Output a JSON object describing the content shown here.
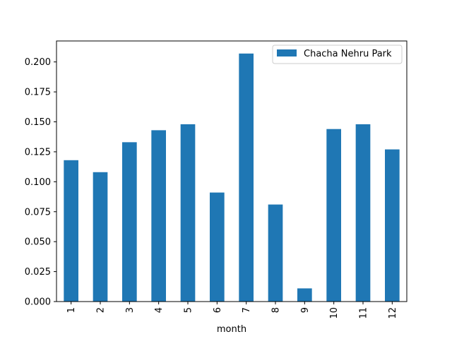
{
  "chart_data": {
    "type": "bar",
    "title": "",
    "xlabel": "month",
    "ylabel": "",
    "categories": [
      "1",
      "2",
      "3",
      "4",
      "5",
      "6",
      "7",
      "8",
      "9",
      "10",
      "11",
      "12"
    ],
    "series": [
      {
        "name": "Chacha Nehru Park",
        "color": "#1f77b4",
        "values": [
          0.118,
          0.108,
          0.133,
          0.143,
          0.148,
          0.091,
          0.207,
          0.081,
          0.011,
          0.144,
          0.148,
          0.127
        ]
      }
    ],
    "ylim": [
      0,
      0.2175
    ],
    "yticks": [
      "0.000",
      "0.025",
      "0.050",
      "0.075",
      "0.100",
      "0.125",
      "0.150",
      "0.175",
      "0.200"
    ],
    "grid": false,
    "legend_position": "top-right"
  }
}
